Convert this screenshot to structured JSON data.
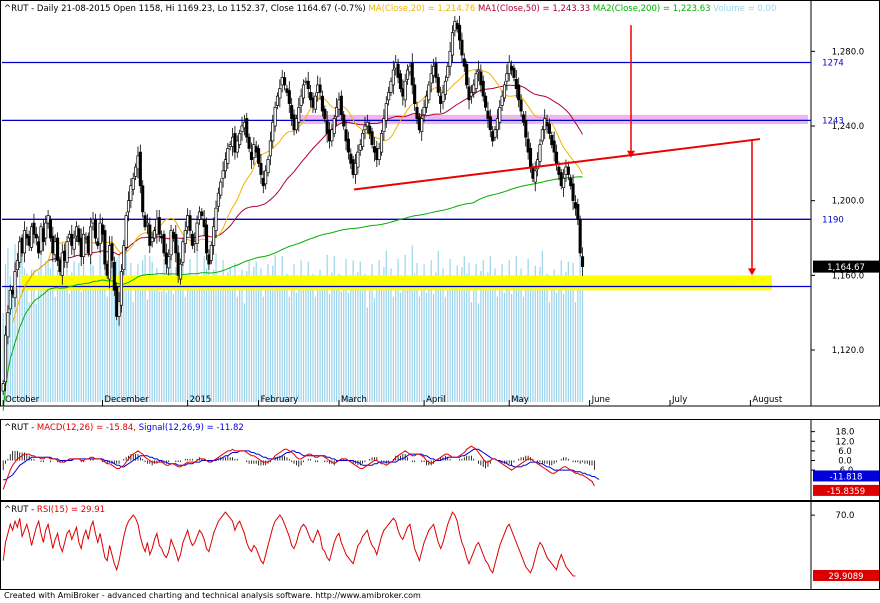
{
  "chart_data": [
    {
      "type": "candlestick",
      "panel": "price",
      "symbol": "^RUT",
      "period": "Daily",
      "date": "21-08-2015",
      "ohlc": {
        "open": "1158",
        "high": "1169.23",
        "low": "1152.37",
        "close": "1164.67",
        "change": "(-0.7%)"
      },
      "legend": [
        {
          "label": "MA(Close,20)",
          "value": "1,214.76",
          "color": "#f0b400"
        },
        {
          "label": "MA1(Close,50)",
          "value": "1,243.33",
          "color": "#b00030"
        },
        {
          "label": "MA2(Close,200)",
          "value": "1,223.63",
          "color": "#00b000"
        },
        {
          "label": "Volume",
          "value": "0.00",
          "color": "#9ad4ec"
        }
      ],
      "ylim": [
        1090,
        1300
      ],
      "y_ticks": [
        "1,280.0",
        "1,240.0",
        "1,200.0",
        "1,160.0",
        "1,120.0"
      ],
      "y_tick_values": [
        1280,
        1240,
        1200,
        1160,
        1120
      ],
      "x_labels": [
        "October",
        "December",
        "2015",
        "February",
        "March",
        "April",
        "May",
        "June",
        "July",
        "August"
      ],
      "x_label_bars": [
        0,
        42,
        78,
        108,
        142,
        178,
        214,
        248,
        282,
        316
      ],
      "bar_count": 340,
      "horizontal_levels": [
        {
          "value": 1274,
          "label": "1274"
        },
        {
          "value": 1243,
          "label": "1243"
        },
        {
          "value": 1190,
          "label": "1190"
        }
      ],
      "current_price_label": "1,164.67",
      "support_zone": [
        1152,
        1160
      ],
      "resistance_zone": [
        1241,
        1246
      ],
      "closes": [
        1102,
        1128,
        1140,
        1152,
        1150,
        1162,
        1168,
        1178,
        1172,
        1184,
        1180,
        1176,
        1186,
        1182,
        1180,
        1172,
        1186,
        1178,
        1188,
        1192,
        1180,
        1172,
        1178,
        1168,
        1162,
        1172,
        1168,
        1178,
        1182,
        1176,
        1180,
        1186,
        1178,
        1170,
        1182,
        1180,
        1172,
        1186,
        1190,
        1180,
        1176,
        1188,
        1182,
        1166,
        1160,
        1176,
        1168,
        1152,
        1138,
        1146,
        1162,
        1176,
        1192,
        1200,
        1208,
        1212,
        1218,
        1224,
        1208,
        1194,
        1186,
        1188,
        1176,
        1180,
        1184,
        1190,
        1182,
        1180,
        1172,
        1166,
        1170,
        1184,
        1180,
        1172,
        1160,
        1166,
        1178,
        1184,
        1192,
        1184,
        1176,
        1178,
        1188,
        1194,
        1192,
        1186,
        1172,
        1166,
        1176,
        1186,
        1196,
        1204,
        1210,
        1216,
        1222,
        1228,
        1230,
        1234,
        1226,
        1232,
        1236,
        1240,
        1242,
        1234,
        1228,
        1222,
        1230,
        1226,
        1220,
        1214,
        1208,
        1216,
        1222,
        1232,
        1242,
        1250,
        1256,
        1260,
        1266,
        1262,
        1258,
        1252,
        1244,
        1238,
        1244,
        1250,
        1256,
        1262,
        1264,
        1260,
        1254,
        1250,
        1256,
        1262,
        1258,
        1248,
        1244,
        1236,
        1232,
        1238,
        1244,
        1250,
        1254,
        1246,
        1240,
        1232,
        1226,
        1220,
        1214,
        1220,
        1226,
        1230,
        1236,
        1240,
        1242,
        1236,
        1230,
        1226,
        1222,
        1228,
        1236,
        1244,
        1252,
        1258,
        1264,
        1270,
        1274,
        1266,
        1260,
        1256,
        1264,
        1270,
        1272,
        1262,
        1252,
        1244,
        1238,
        1244,
        1250,
        1256,
        1262,
        1268,
        1272,
        1266,
        1258,
        1252,
        1258,
        1264,
        1272,
        1280,
        1290,
        1296,
        1292,
        1286,
        1278,
        1272,
        1262,
        1254,
        1258,
        1262,
        1268,
        1270,
        1262,
        1256,
        1250,
        1244,
        1238,
        1232,
        1238,
        1244,
        1250,
        1256,
        1262,
        1268,
        1274,
        1270,
        1266,
        1260,
        1254,
        1248,
        1242,
        1234,
        1226,
        1218,
        1212,
        1216,
        1222,
        1230,
        1238,
        1244,
        1240,
        1236,
        1230,
        1226,
        1220,
        1214,
        1208,
        1212,
        1218,
        1214,
        1208,
        1200,
        1196,
        1190,
        1172,
        1164.67
      ],
      "ma20_reading": "1,214.76",
      "ma50_reading": "1,243.33",
      "ma200_reading": "1,223.63"
    },
    {
      "type": "line",
      "panel": "macd",
      "symbol": "^RUT",
      "title_label": "MACD(12,26)",
      "title_value": "-15.84",
      "signal_label": "Signal(12,26,9)",
      "signal_value": "-11.82",
      "ylim": [
        -24,
        24
      ],
      "y_ticks": [
        "18.0",
        "12.0",
        "6.0",
        "0.0",
        "-6.0"
      ],
      "y_tick_values": [
        18,
        12,
        6,
        0,
        -6
      ],
      "value_labels": [
        {
          "text": "-11.818",
          "value": -11.818,
          "color": "#0000dd"
        },
        {
          "text": "-15.8359",
          "value": -15.8359,
          "color": "#dd0000"
        }
      ],
      "macd": [
        -18,
        -14,
        -10,
        -6,
        -3,
        -1,
        1,
        2,
        3,
        4,
        4,
        4,
        3,
        3,
        2,
        2,
        1,
        1,
        2,
        2,
        1,
        1,
        1,
        0,
        -1,
        -1,
        -1,
        0,
        1,
        1,
        1,
        1,
        1,
        0,
        0,
        1,
        1,
        2,
        2,
        1,
        1,
        1,
        0,
        -1,
        -2,
        -2,
        -3,
        -4,
        -5,
        -5,
        -4,
        -3,
        -1,
        1,
        3,
        4,
        5,
        6,
        5,
        4,
        2,
        1,
        0,
        -1,
        -1,
        -1,
        -1,
        -1,
        -2,
        -3,
        -3,
        -2,
        -2,
        -3,
        -4,
        -4,
        -3,
        -2,
        -1,
        -1,
        -1,
        -1,
        0,
        1,
        1,
        1,
        0,
        -1,
        -1,
        0,
        1,
        2,
        3,
        4,
        5,
        6,
        6,
        7,
        6,
        6,
        6,
        6,
        6,
        5,
        4,
        3,
        3,
        2,
        1,
        0,
        -1,
        -1,
        -1,
        0,
        1,
        3,
        4,
        5,
        6,
        7,
        7,
        6,
        5,
        4,
        2,
        1,
        1,
        2,
        3,
        4,
        4,
        3,
        2,
        2,
        3,
        3,
        2,
        1,
        0,
        -1,
        -2,
        -1,
        0,
        1,
        1,
        1,
        0,
        -1,
        -2,
        -3,
        -4,
        -5,
        -5,
        -4,
        -3,
        -2,
        -1,
        0,
        0,
        -1,
        -2,
        -2,
        -3,
        -2,
        -1,
        0,
        2,
        3,
        4,
        5,
        6,
        5,
        4,
        3,
        3,
        4,
        4,
        3,
        2,
        0,
        -1,
        -2,
        -1,
        0,
        1,
        2,
        3,
        4,
        4,
        3,
        2,
        2,
        2,
        3,
        4,
        5,
        7,
        8,
        9,
        8,
        7,
        5,
        3,
        1,
        -1,
        -1,
        0,
        1,
        1,
        0,
        -1,
        -2,
        -3,
        -4,
        -5,
        -6,
        -5,
        -4,
        -3,
        -2,
        -1,
        0,
        1,
        1,
        0,
        -1,
        -2,
        -3,
        -4,
        -5,
        -6,
        -7,
        -8,
        -8,
        -7,
        -6,
        -5,
        -4,
        -4,
        -5,
        -6,
        -7,
        -8,
        -8,
        -9,
        -9,
        -10,
        -11,
        -12,
        -13,
        -15.84
      ],
      "signal": [
        -12,
        -12,
        -11,
        -10,
        -9,
        -7,
        -5,
        -3,
        -2,
        -1,
        0,
        1,
        2,
        2,
        2,
        2,
        2,
        2,
        2,
        2,
        2,
        1,
        1,
        1,
        0,
        0,
        0,
        0,
        0,
        0,
        1,
        1,
        1,
        1,
        1,
        1,
        1,
        1,
        1,
        1,
        1,
        1,
        1,
        0,
        0,
        -1,
        -1,
        -2,
        -3,
        -3,
        -4,
        -4,
        -3,
        -2,
        -1,
        0,
        1,
        2,
        3,
        3,
        3,
        3,
        2,
        2,
        1,
        1,
        0,
        0,
        -1,
        -1,
        -2,
        -2,
        -2,
        -2,
        -3,
        -3,
        -3,
        -3,
        -2,
        -2,
        -2,
        -1,
        -1,
        -1,
        0,
        0,
        0,
        0,
        0,
        0,
        0,
        1,
        1,
        2,
        3,
        3,
        4,
        5,
        5,
        5,
        6,
        6,
        6,
        6,
        6,
        5,
        5,
        4,
        4,
        3,
        2,
        2,
        1,
        1,
        1,
        1,
        2,
        2,
        3,
        4,
        5,
        5,
        6,
        6,
        5,
        5,
        4,
        3,
        3,
        3,
        3,
        3,
        3,
        3,
        3,
        3,
        3,
        2,
        2,
        1,
        1,
        0,
        0,
        0,
        0,
        0,
        0,
        0,
        0,
        -1,
        -1,
        -2,
        -3,
        -3,
        -3,
        -3,
        -3,
        -2,
        -2,
        -1,
        -1,
        -1,
        -1,
        -1,
        -1,
        -1,
        -1,
        0,
        1,
        1,
        2,
        3,
        4,
        4,
        4,
        4,
        4,
        4,
        3,
        3,
        2,
        1,
        1,
        0,
        0,
        0,
        1,
        1,
        2,
        2,
        2,
        2,
        2,
        2,
        3,
        3,
        4,
        5,
        6,
        7,
        7,
        7,
        6,
        5,
        4,
        3,
        2,
        1,
        1,
        0,
        0,
        -1,
        -1,
        -2,
        -3,
        -3,
        -4,
        -4,
        -4,
        -4,
        -3,
        -3,
        -2,
        -1,
        -1,
        -1,
        -1,
        -2,
        -2,
        -3,
        -4,
        -4,
        -5,
        -6,
        -6,
        -6,
        -6,
        -6,
        -6,
        -6,
        -6,
        -6,
        -7,
        -7,
        -7,
        -8,
        -8,
        -9,
        -9,
        -10,
        -10,
        -11,
        -11.82
      ]
    },
    {
      "type": "line",
      "panel": "rsi",
      "symbol": "^RUT",
      "title_label": "RSI(15)",
      "title_value": "29.91",
      "ylim": [
        22,
        78
      ],
      "y_ticks": [
        "70.0"
      ],
      "y_tick_values": [
        70
      ],
      "value_labels": [
        {
          "text": "29.9089",
          "value": 29.9089,
          "color": "#dd0000"
        }
      ],
      "rsi": [
        40,
        52,
        58,
        64,
        60,
        66,
        62,
        68,
        56,
        60,
        64,
        58,
        50,
        56,
        62,
        66,
        58,
        52,
        60,
        64,
        56,
        48,
        54,
        58,
        50,
        46,
        52,
        58,
        60,
        54,
        58,
        62,
        52,
        48,
        56,
        60,
        54,
        62,
        66,
        58,
        52,
        58,
        50,
        42,
        40,
        50,
        44,
        38,
        34,
        40,
        48,
        56,
        62,
        66,
        68,
        70,
        68,
        64,
        56,
        50,
        46,
        52,
        44,
        48,
        54,
        58,
        50,
        48,
        44,
        42,
        46,
        54,
        50,
        46,
        40,
        44,
        52,
        56,
        60,
        54,
        50,
        52,
        56,
        60,
        58,
        54,
        48,
        46,
        52,
        58,
        62,
        66,
        68,
        70,
        72,
        70,
        68,
        66,
        60,
        64,
        66,
        62,
        58,
        52,
        48,
        46,
        50,
        48,
        44,
        40,
        38,
        44,
        50,
        56,
        62,
        66,
        68,
        70,
        68,
        64,
        60,
        56,
        50,
        48,
        52,
        58,
        62,
        64,
        62,
        58,
        54,
        52,
        56,
        60,
        56,
        48,
        46,
        42,
        40,
        46,
        52,
        56,
        58,
        52,
        48,
        44,
        42,
        40,
        38,
        44,
        50,
        52,
        56,
        58,
        60,
        54,
        50,
        48,
        44,
        50,
        56,
        60,
        62,
        64,
        66,
        68,
        66,
        60,
        56,
        54,
        58,
        62,
        64,
        56,
        48,
        44,
        40,
        46,
        52,
        56,
        60,
        62,
        64,
        58,
        52,
        48,
        52,
        58,
        64,
        68,
        72,
        70,
        66,
        58,
        52,
        48,
        42,
        38,
        42,
        46,
        50,
        52,
        48,
        44,
        40,
        38,
        34,
        32,
        38,
        44,
        50,
        54,
        58,
        62,
        64,
        60,
        56,
        52,
        48,
        44,
        40,
        36,
        34,
        32,
        36,
        42,
        48,
        52,
        50,
        46,
        42,
        40,
        38,
        36,
        34,
        40,
        44,
        40,
        36,
        34,
        32,
        30,
        29.91
      ]
    }
  ],
  "footer": {
    "text": "Created with AmiBroker - advanced charting and technical analysis software. http://www.amibroker.com"
  },
  "colors": {
    "ma20": "#f0b400",
    "ma50": "#b00030",
    "ma200": "#00b000",
    "volume": "#9ad4ec",
    "level_line": "#0000cc",
    "support_zone": "#ffff00",
    "resistance_zone": "#e8a0e8",
    "trendline": "#ee0000",
    "macd": "#dd0000",
    "signal": "#0000dd",
    "rsi": "#dd0000"
  }
}
